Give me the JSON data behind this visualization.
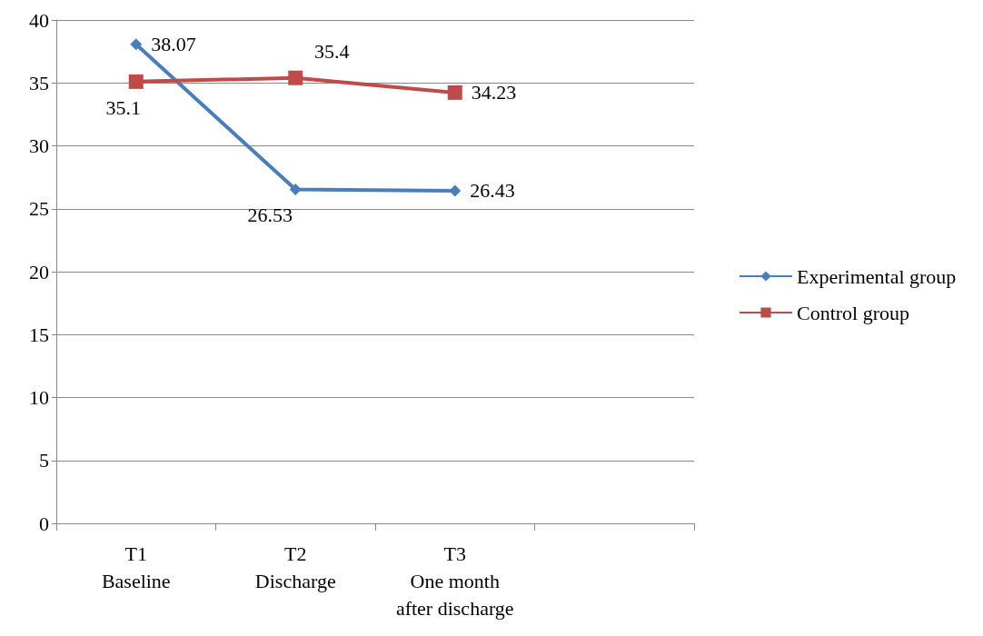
{
  "chart_data": {
    "type": "line",
    "categories": [
      "T1\nBaseline",
      "T2\nDischarge",
      "T3\nOne month\nafter discharge",
      null
    ],
    "series": [
      {
        "name": "Experimental group",
        "color": "#4a7ebb",
        "marker": "diamond",
        "values": [
          38.07,
          26.53,
          26.43,
          null
        ]
      },
      {
        "name": "Control group",
        "color": "#be4b48",
        "marker": "square",
        "values": [
          35.1,
          35.4,
          34.23,
          null
        ]
      }
    ],
    "ylim": [
      0,
      40
    ],
    "yticks": [
      0,
      5,
      10,
      15,
      20,
      25,
      30,
      35,
      40
    ],
    "grid": "y",
    "legend": "right",
    "data_labels": true
  }
}
